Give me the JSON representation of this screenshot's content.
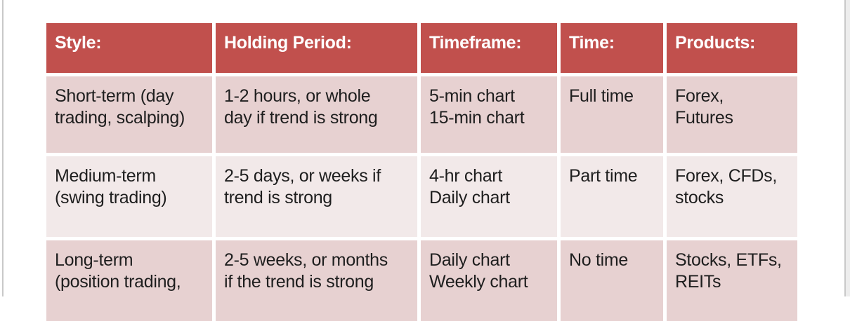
{
  "page": {
    "background": "#ffffff",
    "edge_line_color": "#c9c9c9",
    "outside_strip_color": "#ededed"
  },
  "table": {
    "style": {
      "header_bg": "#c1504d",
      "header_text_color": "#ffffff",
      "band_dark_bg": "#e7d1d1",
      "band_light_bg": "#f2e9e9",
      "body_text_color": "#1e1e1e"
    },
    "headers": [
      "Style:",
      "Holding Period:",
      "Timeframe:",
      "Time:",
      "Products:"
    ],
    "rows": [
      {
        "cells": [
          "Short-term (day\ntrading, scalping)",
          "1-2 hours, or whole\nday if trend is strong",
          "5-min chart\n15-min chart",
          "Full time",
          "Forex,\nFutures"
        ]
      },
      {
        "cells": [
          "Medium-term\n(swing trading)",
          "2-5 days, or weeks if\ntrend is strong",
          "4-hr chart\nDaily chart",
          "Part time",
          "Forex, CFDs,\nstocks"
        ]
      },
      {
        "cells": [
          "Long-term\n(position trading,",
          "2-5 weeks, or months\nif the trend is strong",
          "Daily chart\nWeekly chart",
          "No time",
          "Stocks, ETFs,\nREITs"
        ]
      }
    ]
  }
}
